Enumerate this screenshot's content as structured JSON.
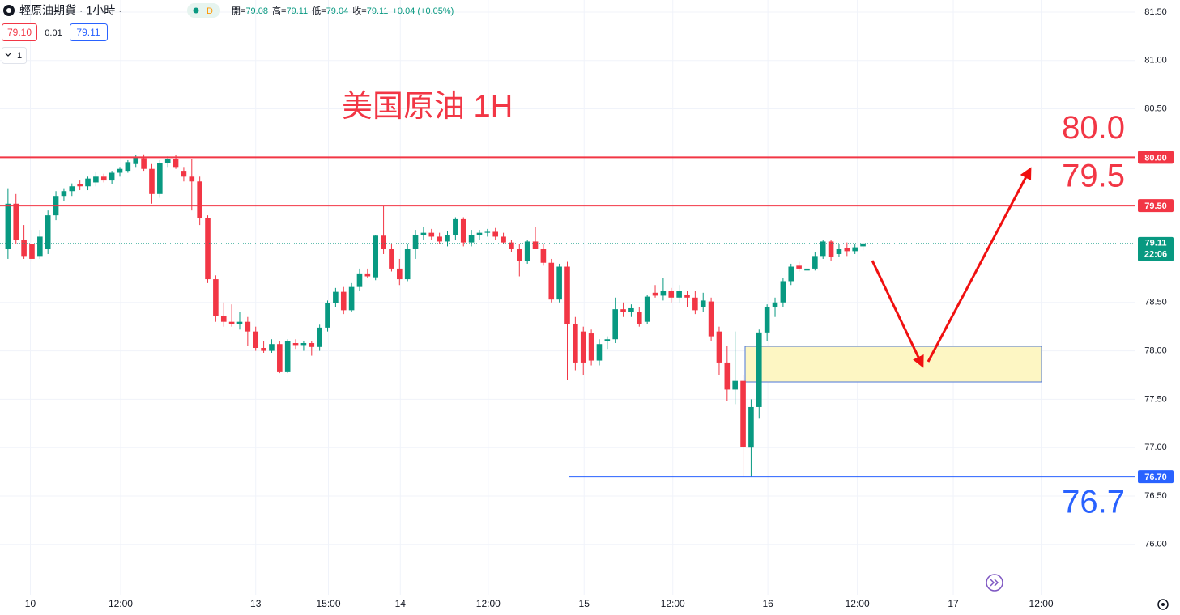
{
  "header": {
    "symbol": "輕原油期貨 · 1小時 ·",
    "badge": "D",
    "ohlc": [
      {
        "label": "開=",
        "value": "79.08"
      },
      {
        "label": "高=",
        "value": "79.11"
      },
      {
        "label": "低=",
        "value": "79.04"
      },
      {
        "label": "收=",
        "value": "79.11"
      }
    ],
    "change": "+0.04 (+0.05%)",
    "bid": "79.10",
    "spread": "0.01",
    "ask": "79.11",
    "layers": "1"
  },
  "chart_data": {
    "type": "candlestick",
    "title": "美国原油 1H",
    "up_color": "#089981",
    "down_color": "#f23645",
    "xlim": [
      -1,
      141
    ],
    "ylim": [
      75.48,
      81.625
    ],
    "xticks": [
      {
        "value": 2.8,
        "label": "10"
      },
      {
        "value": 14.1,
        "label": "12:00"
      },
      {
        "value": 31,
        "label": "13"
      },
      {
        "value": 40.1,
        "label": "15:00"
      },
      {
        "value": 49.1,
        "label": "14"
      },
      {
        "value": 60.1,
        "label": "12:00"
      },
      {
        "value": 72.1,
        "label": "15"
      },
      {
        "value": 83.2,
        "label": "12:00"
      },
      {
        "value": 95.1,
        "label": "16"
      },
      {
        "value": 106.3,
        "label": "12:00"
      },
      {
        "value": 118.3,
        "label": "17"
      },
      {
        "value": 129.3,
        "label": "12:00"
      }
    ],
    "yticks": [
      {
        "value": 81.5,
        "label": "81.50"
      },
      {
        "value": 81,
        "label": "81.00"
      },
      {
        "value": 80.5,
        "label": "80.50"
      },
      {
        "value": 78.5,
        "label": "78.50"
      },
      {
        "value": 78,
        "label": "78.00"
      },
      {
        "value": 77.5,
        "label": "77.50"
      },
      {
        "value": 77,
        "label": "77.00"
      },
      {
        "value": 76.5,
        "label": "76.50"
      },
      {
        "value": 76,
        "label": "76.00"
      }
    ],
    "grid": true,
    "x": [
      0,
      1,
      2,
      3,
      4,
      5,
      6,
      7,
      8,
      9,
      10,
      11,
      12,
      13,
      14,
      15,
      16,
      17,
      18,
      19,
      20,
      21,
      22,
      23,
      24,
      25,
      26,
      27,
      28,
      29,
      30,
      31,
      32,
      33,
      34,
      35,
      36,
      37,
      38,
      39,
      40,
      41,
      42,
      43,
      44,
      45,
      46,
      47,
      48,
      49,
      50,
      51,
      52,
      53,
      54,
      55,
      56,
      57,
      58,
      59,
      60,
      61,
      62,
      63,
      64,
      65,
      66,
      67,
      68,
      69,
      70,
      71,
      72,
      73,
      74,
      75,
      76,
      77,
      78,
      79,
      80,
      81,
      82,
      83,
      84,
      85,
      86,
      87,
      88,
      89,
      90,
      91,
      92,
      93,
      94,
      95,
      96,
      97,
      98,
      99,
      100,
      101,
      102,
      103,
      104,
      105,
      106,
      107
    ],
    "open": [
      79.05,
      79.52,
      79.15,
      79.1,
      78.98,
      79.05,
      79.4,
      79.6,
      79.65,
      79.72,
      79.7,
      79.74,
      79.8,
      79.76,
      79.84,
      79.86,
      79.93,
      79.99,
      79.88,
      79.62,
      79.94,
      79.98,
      79.86,
      79.8,
      79.75,
      79.37,
      78.74,
      78.36,
      78.3,
      78.28,
      78.3,
      78.2,
      78.03,
      78.0,
      78.07,
      77.78,
      78.08,
      78.06,
      78.08,
      78.04,
      78.24,
      78.49,
      78.61,
      78.42,
      78.66,
      78.8,
      78.76,
      79.19,
      79.05,
      78.85,
      78.74,
      79.05,
      79.2,
      79.22,
      79.18,
      79.13,
      79.2,
      79.36,
      79.12,
      79.2,
      79.22,
      79.23,
      79.18,
      79.12,
      79.05,
      78.93,
      79.13,
      79.05,
      78.91,
      78.53,
      78.87,
      78.28,
      78.2,
      78.18,
      77.9,
      78.1,
      78.12,
      78.43,
      78.4,
      78.4,
      78.3,
      78.6,
      78.57,
      78.62,
      78.55,
      78.58,
      78.55,
      78.45,
      78.51,
      78.2,
      77.88,
      77.6,
      77.69,
      77.0,
      77.42,
      78.19,
      78.45,
      78.5,
      78.72,
      78.88,
      78.83,
      78.85,
      78.98,
      79.13,
      79.0,
      79.06,
      79.03,
      79.08
    ],
    "high": [
      79.68,
      79.62,
      79.3,
      79.25,
      79.25,
      79.45,
      79.65,
      79.68,
      79.73,
      79.76,
      79.8,
      79.85,
      79.83,
      79.86,
      79.9,
      79.97,
      80.02,
      80.03,
      79.93,
      79.97,
      80.01,
      80.02,
      79.9,
      79.98,
      79.8,
      79.4,
      78.78,
      78.5,
      78.48,
      78.4,
      78.35,
      78.25,
      78.1,
      78.12,
      78.1,
      78.12,
      78.12,
      78.1,
      78.1,
      78.27,
      78.52,
      78.65,
      78.66,
      78.7,
      78.85,
      78.85,
      79.2,
      79.5,
      79.1,
      78.95,
      79.1,
      79.25,
      79.28,
      79.26,
      79.22,
      79.24,
      79.38,
      79.38,
      79.25,
      79.25,
      79.26,
      79.27,
      79.22,
      79.15,
      79.1,
      79.15,
      79.28,
      79.1,
      78.95,
      78.9,
      78.92,
      78.35,
      78.25,
      78.22,
      78.12,
      78.15,
      78.55,
      78.5,
      78.48,
      78.45,
      78.58,
      78.68,
      78.75,
      78.65,
      78.68,
      78.62,
      78.62,
      78.6,
      78.55,
      78.25,
      78.05,
      78.2,
      77.75,
      77.5,
      78.22,
      78.48,
      78.55,
      78.75,
      78.9,
      78.92,
      78.92,
      79.02,
      79.15,
      79.15,
      79.1,
      79.12,
      79.1,
      79.11
    ],
    "low": [
      78.95,
      79.1,
      78.95,
      78.92,
      78.95,
      79.0,
      79.35,
      79.55,
      79.6,
      79.66,
      79.66,
      79.7,
      79.74,
      79.72,
      79.8,
      79.84,
      79.9,
      79.86,
      79.52,
      79.58,
      79.9,
      79.88,
      79.75,
      79.45,
      79.3,
      78.7,
      78.3,
      78.25,
      78.25,
      78.22,
      78.05,
      78.0,
      77.98,
      77.98,
      77.77,
      77.77,
      78.02,
      78.0,
      77.95,
      78.0,
      78.2,
      78.45,
      78.38,
      78.4,
      78.62,
      78.75,
      78.73,
      79.0,
      78.82,
      78.68,
      78.72,
      78.95,
      79.15,
      79.15,
      79.1,
      79.08,
      79.15,
      79.08,
      79.08,
      79.15,
      79.18,
      79.15,
      79.1,
      79.02,
      78.77,
      78.9,
      79.05,
      78.88,
      78.5,
      78.5,
      77.7,
      77.8,
      77.75,
      77.85,
      77.85,
      78.02,
      78.08,
      78.35,
      78.35,
      78.25,
      78.28,
      78.55,
      78.52,
      78.5,
      78.5,
      78.45,
      78.38,
      78.4,
      78.1,
      77.75,
      77.48,
      77.45,
      76.7,
      76.7,
      77.3,
      78.1,
      78.35,
      78.45,
      78.68,
      78.82,
      78.8,
      78.83,
      78.95,
      78.93,
      78.97,
      78.98,
      79.0,
      79.04
    ],
    "close": [
      79.52,
      79.15,
      78.98,
      78.95,
      79.18,
      79.4,
      79.6,
      79.65,
      79.7,
      79.7,
      79.78,
      79.8,
      79.76,
      79.84,
      79.88,
      79.95,
      80.0,
      79.88,
      79.62,
      79.94,
      79.98,
      79.9,
      79.8,
      79.75,
      79.37,
      78.74,
      78.36,
      78.3,
      78.28,
      78.3,
      78.2,
      78.03,
      78.0,
      78.07,
      77.78,
      78.1,
      78.06,
      78.08,
      78.04,
      78.24,
      78.49,
      78.61,
      78.42,
      78.66,
      78.8,
      78.77,
      79.19,
      79.05,
      78.85,
      78.74,
      79.05,
      79.2,
      79.22,
      79.18,
      79.13,
      79.2,
      79.36,
      79.12,
      79.2,
      79.22,
      79.23,
      79.18,
      79.12,
      79.05,
      78.93,
      79.13,
      79.05,
      78.91,
      78.53,
      78.87,
      78.28,
      77.88,
      77.88,
      77.9,
      78.07,
      78.12,
      78.43,
      78.4,
      78.44,
      78.28,
      78.56,
      78.57,
      78.62,
      78.55,
      78.62,
      78.55,
      78.42,
      78.52,
      78.15,
      77.88,
      77.6,
      77.69,
      77.01,
      77.42,
      78.19,
      78.45,
      78.5,
      78.72,
      78.87,
      78.85,
      78.85,
      78.98,
      79.13,
      78.97,
      79.05,
      79.03,
      79.07,
      79.11
    ],
    "levels": [
      {
        "value": 80,
        "axis_label": "80.00",
        "note": "80.0",
        "color": "#f23645"
      },
      {
        "value": 79.5,
        "axis_label": "79.50",
        "note": "79.5",
        "color": "#f23645"
      },
      {
        "value": 76.7,
        "axis_label": "76.70",
        "note": "76.7",
        "color": "#2962ff",
        "x_start": 70.2
      }
    ],
    "last_price": {
      "value": 79.11,
      "label": "79.11",
      "time": "22:06"
    }
  }
}
